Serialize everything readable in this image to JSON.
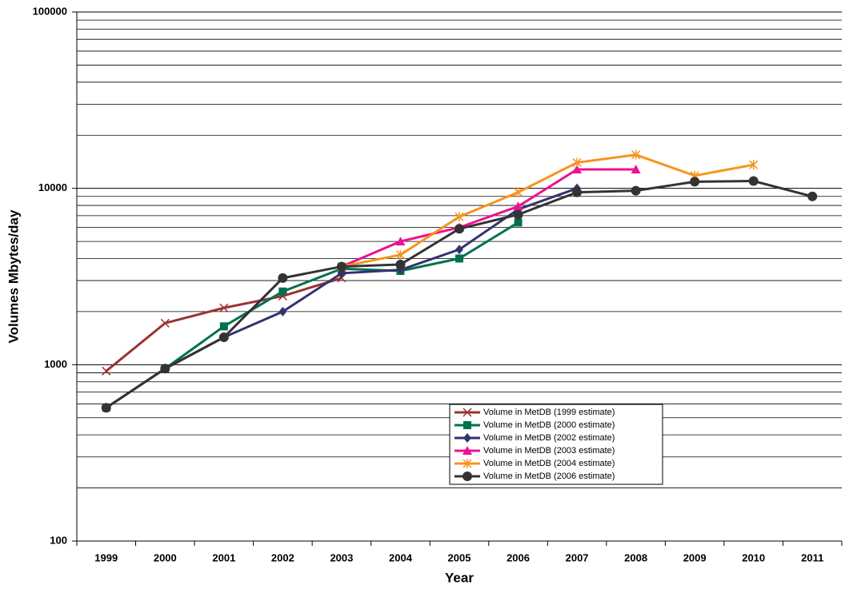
{
  "chart_data": {
    "type": "line",
    "log_y": true,
    "grid": true,
    "minor_grid": true,
    "legend": "lower center",
    "x_label": "Year",
    "y_label": "Volumes Mbytes/day",
    "categories": [
      "1999",
      "2000",
      "2001",
      "2002",
      "2003",
      "2004",
      "2005",
      "2006",
      "2007",
      "2008",
      "2009",
      "2010",
      "2011"
    ],
    "ylim": [
      100,
      100000
    ],
    "yticks": [
      100,
      1000,
      10000,
      100000
    ],
    "series": [
      {
        "name": "Volume in MetDB (1999 estimate)",
        "color": "#993333",
        "marker": "x",
        "values": [
          920,
          1720,
          2100,
          2450,
          3100,
          null,
          null,
          null,
          null,
          null,
          null,
          null,
          null
        ]
      },
      {
        "name": "Volume in MetDB (2000 estimate)",
        "color": "#007050",
        "marker": "square",
        "values": [
          570,
          950,
          1650,
          2600,
          3500,
          3400,
          4000,
          6400,
          null,
          null,
          null,
          null,
          null
        ]
      },
      {
        "name": "Volume in MetDB (2002 estimate)",
        "color": "#333370",
        "marker": "diamond",
        "values": [
          570,
          950,
          1430,
          2000,
          3300,
          3450,
          4500,
          7600,
          10000,
          null,
          null,
          null,
          null
        ]
      },
      {
        "name": "Volume in MetDB (2003 estimate)",
        "color": "#ee1190",
        "marker": "triangle",
        "values": [
          null,
          null,
          null,
          null,
          3600,
          5000,
          6000,
          7900,
          12800,
          12800,
          null,
          null,
          null
        ]
      },
      {
        "name": "Volume in MetDB (2004 estimate)",
        "color": "#f7941d",
        "marker": "asterisk",
        "values": [
          null,
          null,
          null,
          null,
          3600,
          4200,
          6900,
          9500,
          14000,
          15500,
          11800,
          13600,
          null
        ]
      },
      {
        "name": "Volume in MetDB (2006 estimate)",
        "color": "#333333",
        "marker": "circle",
        "values": [
          570,
          950,
          1430,
          3100,
          3600,
          3700,
          5900,
          7100,
          9500,
          9700,
          10900,
          11000,
          9000
        ]
      }
    ]
  }
}
